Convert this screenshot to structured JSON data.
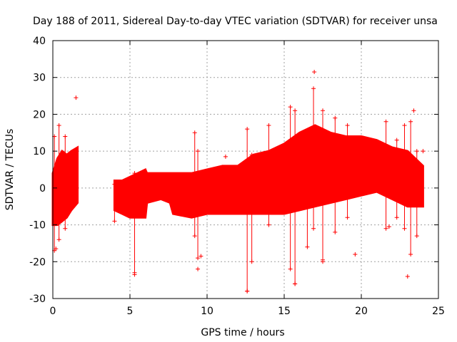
{
  "chart_data": {
    "type": "scatter",
    "title": "Day 188 of 2011, Sidereal Day-to-day VTEC variation (SDTVAR) for receiver unsa",
    "xlabel": "GPS time / hours",
    "ylabel": "SDTVAR / TECUs",
    "xlim": [
      0,
      25
    ],
    "ylim": [
      -30,
      40
    ],
    "xticks": [
      0,
      5,
      10,
      15,
      20,
      25
    ],
    "yticks": [
      -30,
      -20,
      -10,
      0,
      10,
      20,
      30,
      40
    ],
    "xtick_labels": [
      "0",
      "5",
      "10",
      "15",
      "20",
      "25"
    ],
    "ytick_labels": [
      "-30",
      "-20",
      "-10",
      "0",
      "10",
      "20",
      "30",
      "40"
    ],
    "grid": true,
    "marker": "+",
    "color": "#ff0000",
    "envelope": [
      {
        "x": 0.0,
        "lo": -10,
        "hi": 4
      },
      {
        "x": 0.3,
        "lo": -10,
        "hi": 8
      },
      {
        "x": 0.6,
        "lo": -9,
        "hi": 10
      },
      {
        "x": 0.9,
        "lo": -8,
        "hi": 9
      },
      {
        "x": 1.2,
        "lo": -6,
        "hi": 10
      },
      {
        "x": 1.6,
        "lo": -4,
        "hi": 11
      },
      {
        "x": 4.0,
        "lo": -6,
        "hi": 2
      },
      {
        "x": 4.5,
        "lo": -7,
        "hi": 2
      },
      {
        "x": 5.0,
        "lo": -8,
        "hi": 3
      },
      {
        "x": 5.5,
        "lo": -8,
        "hi": 4
      },
      {
        "x": 6.0,
        "lo": -8,
        "hi": 5
      },
      {
        "x": 6.1,
        "lo": -4,
        "hi": 4
      },
      {
        "x": 7.0,
        "lo": -3,
        "hi": 4
      },
      {
        "x": 7.6,
        "lo": -4,
        "hi": 4
      },
      {
        "x": 7.8,
        "lo": -7,
        "hi": 4
      },
      {
        "x": 9.0,
        "lo": -8,
        "hi": 4
      },
      {
        "x": 10.0,
        "lo": -7,
        "hi": 5
      },
      {
        "x": 11.0,
        "lo": -7,
        "hi": 6
      },
      {
        "x": 12.0,
        "lo": -7,
        "hi": 6
      },
      {
        "x": 13.0,
        "lo": -7,
        "hi": 9
      },
      {
        "x": 14.0,
        "lo": -7,
        "hi": 10
      },
      {
        "x": 15.0,
        "lo": -7,
        "hi": 12
      },
      {
        "x": 16.0,
        "lo": -6,
        "hi": 15
      },
      {
        "x": 17.0,
        "lo": -5,
        "hi": 17
      },
      {
        "x": 18.0,
        "lo": -4,
        "hi": 15
      },
      {
        "x": 19.0,
        "lo": -3,
        "hi": 14
      },
      {
        "x": 20.0,
        "lo": -2,
        "hi": 14
      },
      {
        "x": 21.0,
        "lo": -1,
        "hi": 13
      },
      {
        "x": 22.0,
        "lo": -3,
        "hi": 11
      },
      {
        "x": 23.0,
        "lo": -5,
        "hi": 10
      },
      {
        "x": 24.0,
        "lo": -5,
        "hi": 6
      }
    ],
    "spikes": [
      {
        "x": 0.1,
        "lo": -17,
        "hi": 14
      },
      {
        "x": 0.4,
        "lo": -14,
        "hi": 17
      },
      {
        "x": 0.8,
        "lo": -11,
        "hi": 14
      },
      {
        "x": 4.0,
        "lo": -9,
        "hi": 1
      },
      {
        "x": 5.3,
        "lo": -23,
        "hi": 4
      },
      {
        "x": 9.2,
        "lo": -13,
        "hi": 15
      },
      {
        "x": 9.4,
        "lo": -19,
        "hi": 10
      },
      {
        "x": 12.6,
        "lo": -28,
        "hi": 16
      },
      {
        "x": 12.9,
        "lo": -20,
        "hi": 9
      },
      {
        "x": 14.0,
        "lo": -10,
        "hi": 17
      },
      {
        "x": 15.4,
        "lo": -22,
        "hi": 22
      },
      {
        "x": 15.7,
        "lo": -26,
        "hi": 21
      },
      {
        "x": 16.5,
        "lo": -16,
        "hi": 14
      },
      {
        "x": 16.9,
        "lo": -11,
        "hi": 27
      },
      {
        "x": 17.5,
        "lo": -20,
        "hi": 21
      },
      {
        "x": 18.3,
        "lo": -12,
        "hi": 19
      },
      {
        "x": 19.1,
        "lo": -8,
        "hi": 17
      },
      {
        "x": 21.6,
        "lo": -11,
        "hi": 18
      },
      {
        "x": 22.3,
        "lo": -8,
        "hi": 13
      },
      {
        "x": 22.8,
        "lo": -11,
        "hi": 17
      },
      {
        "x": 23.2,
        "lo": -18,
        "hi": 18
      },
      {
        "x": 23.6,
        "lo": -13,
        "hi": 10
      }
    ],
    "outliers": [
      {
        "x": 1.5,
        "y": 24.5
      },
      {
        "x": 16.95,
        "y": 31.5
      },
      {
        "x": 12.6,
        "y": -28
      },
      {
        "x": 15.7,
        "y": -26
      },
      {
        "x": 23.0,
        "y": -24
      },
      {
        "x": 5.3,
        "y": -23.5
      },
      {
        "x": 9.4,
        "y": -22
      },
      {
        "x": 9.6,
        "y": -18.5
      },
      {
        "x": 17.5,
        "y": -19.5
      },
      {
        "x": 20.3,
        "y": 3
      },
      {
        "x": 0.2,
        "y": -16.5
      },
      {
        "x": 23.4,
        "y": 21
      },
      {
        "x": 11.2,
        "y": 8.5
      },
      {
        "x": 21.8,
        "y": -10.5
      },
      {
        "x": 24.0,
        "y": 10
      },
      {
        "x": 19.6,
        "y": -18.0
      }
    ]
  }
}
